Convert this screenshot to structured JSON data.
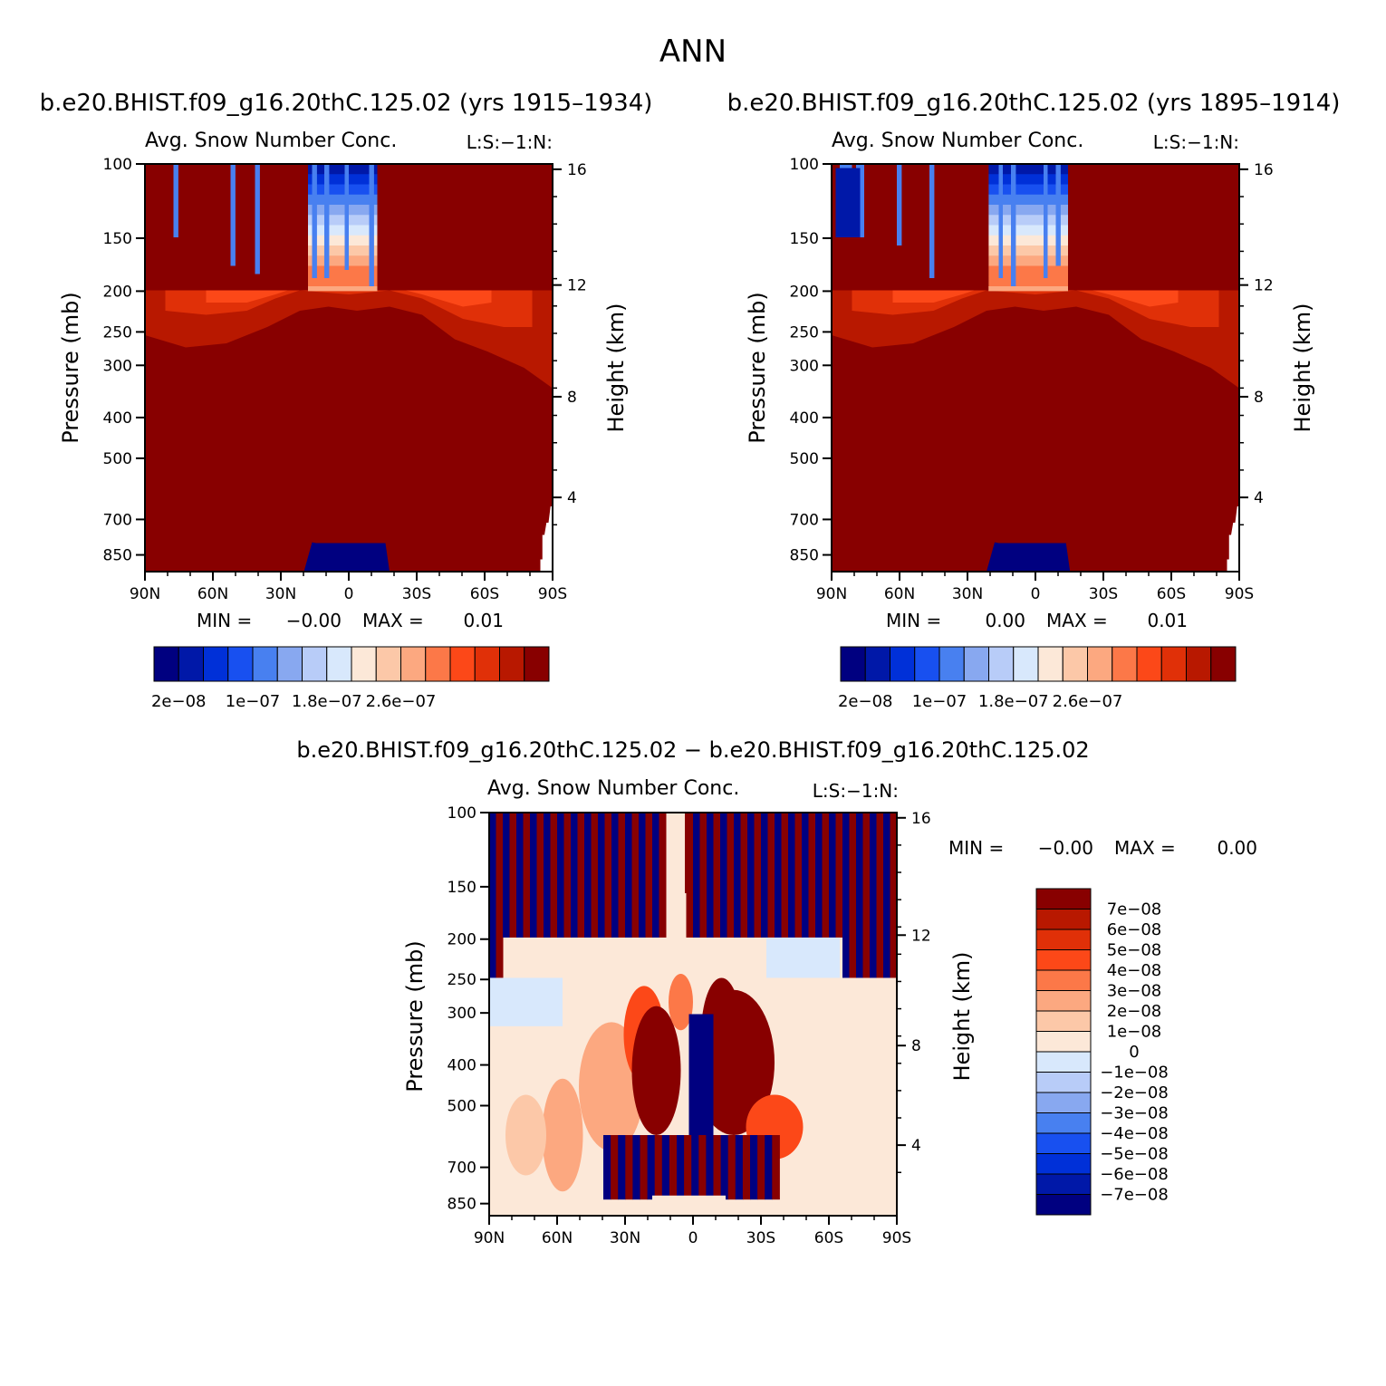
{
  "page": {
    "title": "ANN"
  },
  "colors": {
    "neg": [
      "#000080",
      "#0018a8",
      "#0030d8",
      "#1850f0",
      "#4880f0",
      "#88a8f0",
      "#b8ccf8",
      "#d8e8fc"
    ],
    "pos": [
      "#fce8d8",
      "#fcc8a8",
      "#fca880",
      "#fc7848",
      "#fc4818",
      "#e03008",
      "#b81800",
      "#880000"
    ]
  },
  "chart_data": [
    {
      "type": "heatmap",
      "title": "b.e20.BHIST.f09_g16.20thC.125.02 (yrs 1915–1934)",
      "subtitle": "Avg. Snow Number Conc.",
      "units_label": "L:S:−1:N:",
      "ylabel": "Pressure (mb)",
      "ylabel_right": "Height (km)",
      "x_ticks": [
        "90N",
        "60N",
        "30N",
        "0",
        "30S",
        "60S",
        "90S"
      ],
      "y_ticks": [
        "100",
        "150",
        "200",
        "250",
        "300",
        "400",
        "500",
        "700",
        "850"
      ],
      "y_ticks_right": [
        "16",
        "12",
        "8",
        "4"
      ],
      "min_label": "MIN =",
      "min_value": "−0.00",
      "max_label": "MAX =",
      "max_value": "0.01",
      "colorbar_labels": [
        "2e−08",
        "1e−07",
        "1.8e−07",
        "2.6e−07"
      ]
    },
    {
      "type": "heatmap",
      "title": "b.e20.BHIST.f09_g16.20thC.125.02 (yrs 1895–1914)",
      "subtitle": "Avg. Snow Number Conc.",
      "units_label": "L:S:−1:N:",
      "ylabel": "Pressure (mb)",
      "ylabel_right": "Height (km)",
      "x_ticks": [
        "90N",
        "60N",
        "30N",
        "0",
        "30S",
        "60S",
        "90S"
      ],
      "y_ticks": [
        "100",
        "150",
        "200",
        "250",
        "300",
        "400",
        "500",
        "700",
        "850"
      ],
      "y_ticks_right": [
        "16",
        "12",
        "8",
        "4"
      ],
      "min_label": "MIN =",
      "min_value": "0.00",
      "max_label": "MAX =",
      "max_value": "0.01",
      "colorbar_labels": [
        "2e−08",
        "1e−07",
        "1.8e−07",
        "2.6e−07"
      ]
    },
    {
      "type": "heatmap",
      "title": "b.e20.BHIST.f09_g16.20thC.125.02 − b.e20.BHIST.f09_g16.20thC.125.02",
      "subtitle": "Avg. Snow Number Conc.",
      "units_label": "L:S:−1:N:",
      "ylabel": "Pressure (mb)",
      "ylabel_right": "Height (km)",
      "x_ticks": [
        "90N",
        "60N",
        "30N",
        "0",
        "30S",
        "60S",
        "90S"
      ],
      "y_ticks": [
        "100",
        "150",
        "200",
        "250",
        "300",
        "400",
        "500",
        "700",
        "850"
      ],
      "y_ticks_right": [
        "16",
        "12",
        "8",
        "4"
      ],
      "min_label": "MIN =",
      "min_value": "−0.00",
      "max_label": "MAX =",
      "max_value": "0.00",
      "colorbar_labels": [
        "7e−08",
        "6e−08",
        "5e−08",
        "4e−08",
        "3e−08",
        "2e−08",
        "1e−08",
        "0",
        "−1e−08",
        "−2e−08",
        "−3e−08",
        "−4e−08",
        "−5e−08",
        "−6e−08",
        "−7e−08"
      ]
    }
  ]
}
